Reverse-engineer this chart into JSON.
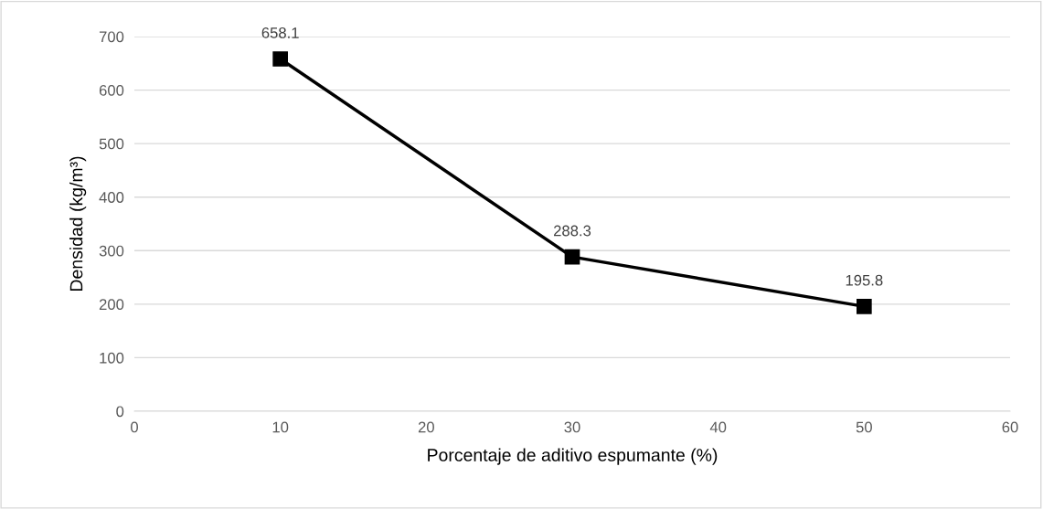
{
  "chart_data": {
    "type": "line",
    "xlabel": "Porcentaje de aditivo espumante (%)",
    "ylabel": "Densidad (kg/m³)",
    "x": [
      10,
      30,
      50
    ],
    "series": [
      {
        "color": "#000000",
        "values": [
          658.1,
          288.3,
          195.8
        ]
      }
    ],
    "xlim": [
      0,
      60
    ],
    "xticks": [
      0,
      10,
      20,
      30,
      40,
      50,
      60
    ],
    "ylim": [
      0,
      700
    ],
    "yticks": [
      0,
      100,
      200,
      300,
      400,
      500,
      600,
      700
    ],
    "grid": "y",
    "marker": "square",
    "line_style": "solid",
    "data_labels": true
  }
}
